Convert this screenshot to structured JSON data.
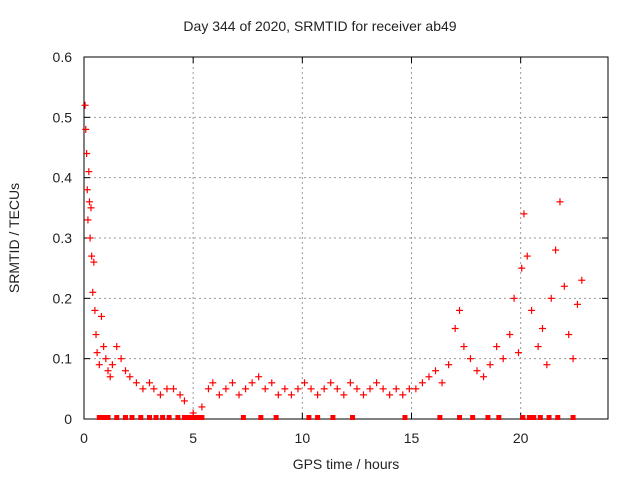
{
  "chart_data": {
    "type": "scatter",
    "title": "Day 344 of 2020, SRMTID for receiver ab49",
    "xlabel": "GPS time / hours",
    "ylabel": "SRMTID / TECUs",
    "xlim": [
      0,
      24
    ],
    "ylim": [
      0,
      0.6
    ],
    "xticks": [
      0,
      5,
      10,
      15,
      20
    ],
    "yticks": [
      0,
      0.1,
      0.2,
      0.3,
      0.4,
      0.5,
      0.6
    ],
    "grid": true,
    "marker": "+",
    "color": "#ff0000",
    "series": [
      {
        "name": "SRMTID",
        "x": [
          0.05,
          0.08,
          0.12,
          0.15,
          0.18,
          0.22,
          0.25,
          0.28,
          0.32,
          0.35,
          0.4,
          0.45,
          0.5,
          0.55,
          0.6,
          0.7,
          0.8,
          0.9,
          1.0,
          1.1,
          1.2,
          1.3,
          1.5,
          1.7,
          1.9,
          2.1,
          2.4,
          2.7,
          3.0,
          3.2,
          3.5,
          3.8,
          4.1,
          4.4,
          4.6,
          5.0,
          5.4,
          5.7,
          5.9,
          6.2,
          6.5,
          6.8,
          7.1,
          7.4,
          7.7,
          8.0,
          8.3,
          8.6,
          8.9,
          9.2,
          9.5,
          9.8,
          10.1,
          10.4,
          10.7,
          11.0,
          11.3,
          11.6,
          11.9,
          12.2,
          12.5,
          12.8,
          13.1,
          13.4,
          13.7,
          14.0,
          14.3,
          14.6,
          14.9,
          15.2,
          15.5,
          15.8,
          16.1,
          16.4,
          16.7,
          17.0,
          17.2,
          17.4,
          17.7,
          18.0,
          18.3,
          18.6,
          18.9,
          19.2,
          19.5,
          19.7,
          19.9,
          20.05,
          20.15,
          20.3,
          20.5,
          20.8,
          21.0,
          21.2,
          21.4,
          21.6,
          21.8,
          22.0,
          22.2,
          22.4,
          22.6,
          22.8
        ],
        "y": [
          0.52,
          0.48,
          0.44,
          0.38,
          0.33,
          0.41,
          0.36,
          0.3,
          0.35,
          0.27,
          0.21,
          0.26,
          0.18,
          0.14,
          0.11,
          0.09,
          0.17,
          0.12,
          0.1,
          0.08,
          0.07,
          0.09,
          0.12,
          0.1,
          0.08,
          0.07,
          0.06,
          0.05,
          0.06,
          0.05,
          0.04,
          0.05,
          0.05,
          0.04,
          0.03,
          0.01,
          0.02,
          0.05,
          0.06,
          0.04,
          0.05,
          0.06,
          0.04,
          0.05,
          0.06,
          0.07,
          0.05,
          0.06,
          0.04,
          0.05,
          0.04,
          0.05,
          0.06,
          0.05,
          0.04,
          0.05,
          0.06,
          0.05,
          0.04,
          0.06,
          0.05,
          0.04,
          0.05,
          0.06,
          0.05,
          0.04,
          0.05,
          0.04,
          0.05,
          0.05,
          0.06,
          0.07,
          0.08,
          0.06,
          0.09,
          0.15,
          0.18,
          0.12,
          0.1,
          0.08,
          0.07,
          0.09,
          0.12,
          0.1,
          0.14,
          0.2,
          0.11,
          0.25,
          0.34,
          0.27,
          0.18,
          0.12,
          0.15,
          0.09,
          0.2,
          0.28,
          0.36,
          0.22,
          0.14,
          0.1,
          0.19,
          0.23
        ]
      }
    ],
    "floor_markers_x": [
      0.7,
      0.9,
      1.1,
      1.5,
      1.9,
      2.2,
      2.6,
      3.0,
      3.3,
      3.6,
      3.9,
      4.3,
      4.6,
      4.8,
      5.0,
      5.2,
      5.4,
      7.3,
      8.1,
      8.8,
      10.3,
      10.7,
      11.4,
      12.3,
      14.7,
      16.3,
      17.2,
      17.8,
      18.5,
      19.0,
      20.1,
      20.4,
      20.6,
      20.9,
      21.3,
      21.7,
      22.4
    ]
  }
}
